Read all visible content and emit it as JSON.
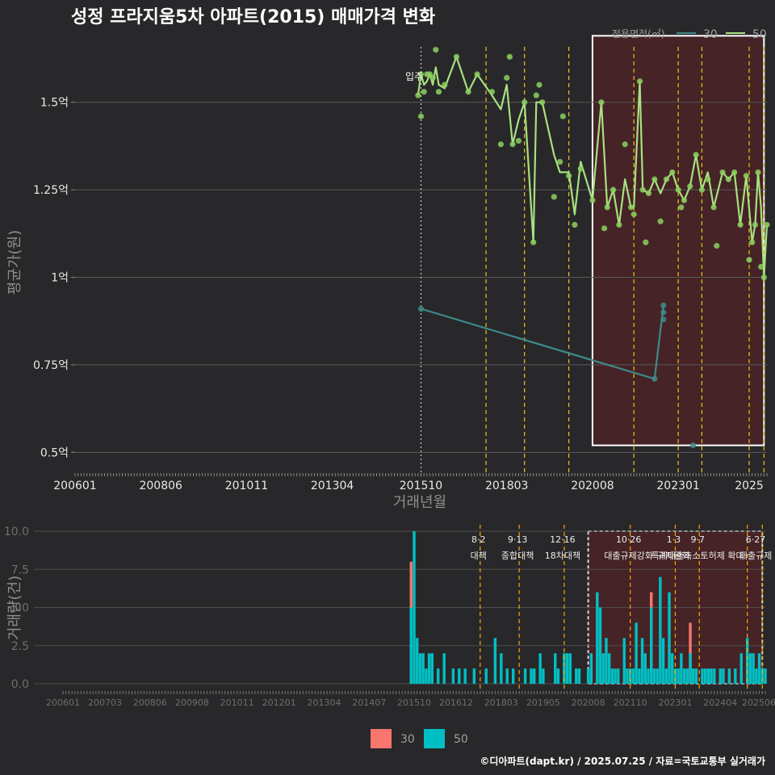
{
  "title": "성정 프라지움5차 아파트(2015) 매매가격 변화",
  "caption": "©디아파트(dapt.kr) / 2025.07.25 / 자료=국토교통부 실거래가",
  "colors": {
    "background": "#28282a",
    "s30_line": "#3e8a8a",
    "s50_line": "#a8e080",
    "s50_point": "#8cd060",
    "bar30": "#f8766d",
    "bar50": "#00bfc4",
    "policy": "#f0c020",
    "policy_bottom": "#ffa500",
    "highlight_fill": "#4a2226",
    "highlight_stroke": "#ffffff"
  },
  "legend": {
    "title": "전용면적(㎡)",
    "items": [
      {
        "label": "30",
        "color": "#3e8a8a"
      },
      {
        "label": "50",
        "color": "#a8e080"
      }
    ]
  },
  "bottom_legend": {
    "items": [
      {
        "label": "30",
        "color": "#f8766d"
      },
      {
        "label": "50",
        "color": "#00bfc4"
      }
    ]
  },
  "chart_data": [
    {
      "type": "line",
      "name": "price",
      "xlabel": "거래년월",
      "ylabel": "평균가(원)",
      "y_unit": "억",
      "xlim": [
        "2006-01",
        "2025-07"
      ],
      "ylim": [
        0.45,
        1.7
      ],
      "x_ticks": [
        "200601",
        "200806",
        "201011",
        "201304",
        "201510",
        "201803",
        "202008",
        "202301",
        "2025"
      ],
      "y_ticks": [
        {
          "v": 0.5,
          "label": "0.5억"
        },
        {
          "v": 0.75,
          "label": "0.75억"
        },
        {
          "v": 1.0,
          "label": "1억"
        },
        {
          "v": 1.25,
          "label": "1.25억"
        },
        {
          "v": 1.5,
          "label": "1.5억"
        }
      ],
      "annotation": {
        "label": "입주",
        "x": "2015-10"
      },
      "policy_lines": [
        "2017-08",
        "2018-09",
        "2019-12",
        "2021-10",
        "2023-01",
        "2023-09",
        "2025-01",
        "2025-06"
      ],
      "highlight": {
        "from": "2020-08",
        "to": "2025-06",
        "ymin": 0.52,
        "ymax": 1.69
      },
      "series": [
        {
          "name": "30",
          "line": [
            [
              "2015-10",
              0.91
            ],
            [
              "2022-05",
              0.71
            ],
            [
              "2022-08",
              0.92
            ]
          ],
          "points": [
            [
              "2015-10",
              0.91
            ],
            [
              "2022-05",
              0.71
            ],
            [
              "2022-08",
              0.88
            ],
            [
              "2022-08",
              0.9
            ],
            [
              "2022-08",
              0.92
            ],
            [
              "2023-06",
              0.52
            ]
          ]
        },
        {
          "name": "50",
          "line": [
            [
              "2015-09",
              1.52
            ],
            [
              "2015-10",
              1.58
            ],
            [
              "2015-11",
              1.55
            ],
            [
              "2015-12",
              1.56
            ],
            [
              "2016-01",
              1.58
            ],
            [
              "2016-02",
              1.55
            ],
            [
              "2016-03",
              1.6
            ],
            [
              "2016-04",
              1.55
            ],
            [
              "2016-06",
              1.54
            ],
            [
              "2016-10",
              1.63
            ],
            [
              "2017-02",
              1.53
            ],
            [
              "2017-05",
              1.58
            ],
            [
              "2017-10",
              1.52
            ],
            [
              "2018-01",
              1.48
            ],
            [
              "2018-03",
              1.55
            ],
            [
              "2018-05",
              1.38
            ],
            [
              "2018-07",
              1.45
            ],
            [
              "2018-09",
              1.5
            ],
            [
              "2018-12",
              1.1
            ],
            [
              "2019-01",
              1.5
            ],
            [
              "2019-03",
              1.5
            ],
            [
              "2019-07",
              1.35
            ],
            [
              "2019-09",
              1.3
            ],
            [
              "2019-12",
              1.3
            ],
            [
              "2020-02",
              1.18
            ],
            [
              "2020-04",
              1.33
            ],
            [
              "2020-08",
              1.22
            ],
            [
              "2020-11",
              1.5
            ],
            [
              "2021-01",
              1.2
            ],
            [
              "2021-03",
              1.25
            ],
            [
              "2021-05",
              1.15
            ],
            [
              "2021-07",
              1.28
            ],
            [
              "2021-09",
              1.2
            ],
            [
              "2021-10",
              1.2
            ],
            [
              "2021-12",
              1.56
            ],
            [
              "2022-01",
              1.25
            ],
            [
              "2022-03",
              1.24
            ],
            [
              "2022-05",
              1.28
            ],
            [
              "2022-07",
              1.24
            ],
            [
              "2022-09",
              1.28
            ],
            [
              "2022-11",
              1.3
            ],
            [
              "2023-01",
              1.25
            ],
            [
              "2023-03",
              1.22
            ],
            [
              "2023-05",
              1.26
            ],
            [
              "2023-07",
              1.35
            ],
            [
              "2023-09",
              1.25
            ],
            [
              "2023-11",
              1.3
            ],
            [
              "2024-01",
              1.2
            ],
            [
              "2024-04",
              1.3
            ],
            [
              "2024-06",
              1.28
            ],
            [
              "2024-08",
              1.3
            ],
            [
              "2024-10",
              1.15
            ],
            [
              "2024-12",
              1.29
            ],
            [
              "2025-02",
              1.1
            ],
            [
              "2025-03",
              1.15
            ],
            [
              "2025-04",
              1.3
            ],
            [
              "2025-05",
              1.2
            ],
            [
              "2025-06",
              1.0
            ],
            [
              "2025-07",
              1.15
            ]
          ],
          "points": [
            [
              "2015-09",
              1.52
            ],
            [
              "2015-10",
              1.46
            ],
            [
              "2015-10",
              1.58
            ],
            [
              "2015-11",
              1.53
            ],
            [
              "2015-12",
              1.58
            ],
            [
              "2016-01",
              1.58
            ],
            [
              "2016-02",
              1.57
            ],
            [
              "2016-03",
              1.65
            ],
            [
              "2016-04",
              1.53
            ],
            [
              "2016-06",
              1.55
            ],
            [
              "2016-10",
              1.63
            ],
            [
              "2017-02",
              1.53
            ],
            [
              "2017-05",
              1.58
            ],
            [
              "2017-10",
              1.53
            ],
            [
              "2018-01",
              1.38
            ],
            [
              "2018-03",
              1.57
            ],
            [
              "2018-04",
              1.63
            ],
            [
              "2018-05",
              1.38
            ],
            [
              "2018-07",
              1.39
            ],
            [
              "2018-09",
              1.5
            ],
            [
              "2018-12",
              1.1
            ],
            [
              "2019-01",
              1.52
            ],
            [
              "2019-02",
              1.55
            ],
            [
              "2019-03",
              1.5
            ],
            [
              "2019-07",
              1.23
            ],
            [
              "2019-09",
              1.33
            ],
            [
              "2019-10",
              1.46
            ],
            [
              "2019-12",
              1.29
            ],
            [
              "2020-02",
              1.15
            ],
            [
              "2020-04",
              1.31
            ],
            [
              "2020-08",
              1.22
            ],
            [
              "2020-11",
              1.5
            ],
            [
              "2020-12",
              1.14
            ],
            [
              "2021-01",
              1.2
            ],
            [
              "2021-03",
              1.25
            ],
            [
              "2021-05",
              1.15
            ],
            [
              "2021-07",
              1.38
            ],
            [
              "2021-09",
              1.2
            ],
            [
              "2021-10",
              1.18
            ],
            [
              "2021-12",
              1.56
            ],
            [
              "2022-01",
              1.25
            ],
            [
              "2022-02",
              1.1
            ],
            [
              "2022-03",
              1.24
            ],
            [
              "2022-05",
              1.28
            ],
            [
              "2022-07",
              1.16
            ],
            [
              "2022-09",
              1.28
            ],
            [
              "2022-11",
              1.3
            ],
            [
              "2023-01",
              1.25
            ],
            [
              "2023-02",
              1.2
            ],
            [
              "2023-03",
              1.22
            ],
            [
              "2023-05",
              1.26
            ],
            [
              "2023-07",
              1.35
            ],
            [
              "2023-09",
              1.25
            ],
            [
              "2023-11",
              1.28
            ],
            [
              "2024-01",
              1.2
            ],
            [
              "2024-02",
              1.09
            ],
            [
              "2024-04",
              1.3
            ],
            [
              "2024-06",
              1.28
            ],
            [
              "2024-08",
              1.3
            ],
            [
              "2024-10",
              1.15
            ],
            [
              "2024-12",
              1.29
            ],
            [
              "2025-01",
              1.05
            ],
            [
              "2025-02",
              1.1
            ],
            [
              "2025-03",
              1.15
            ],
            [
              "2025-04",
              1.3
            ],
            [
              "2025-05",
              1.03
            ],
            [
              "2025-06",
              1.0
            ],
            [
              "2025-07",
              1.15
            ]
          ]
        }
      ]
    },
    {
      "type": "bar",
      "name": "volume",
      "ylabel": "거래량(건)",
      "xlim": [
        "2006-01",
        "2025-07"
      ],
      "ylim": [
        0,
        10
      ],
      "x_ticks": [
        "200601",
        "200703",
        "200806",
        "200908",
        "201011",
        "201201",
        "201304",
        "201407",
        "201510",
        "201612",
        "201803",
        "201905",
        "202008",
        "202110",
        "202301",
        "202404",
        "202506"
      ],
      "y_ticks": [
        {
          "v": 0,
          "label": "0.0"
        },
        {
          "v": 2.5,
          "label": "2.5"
        },
        {
          "v": 5,
          "label": "5.0"
        },
        {
          "v": 7.5,
          "label": "7.5"
        },
        {
          "v": 10,
          "label": "10.0"
        }
      ],
      "policy_lines": [
        {
          "x": "2017-08",
          "label": "8·2 대책"
        },
        {
          "x": "2018-09",
          "label": "9·13 종합대책"
        },
        {
          "x": "2019-12",
          "label": "12·16 18차대책"
        },
        {
          "x": "2021-10",
          "label": "10·26 대출규제강화"
        },
        {
          "x": "2023-01",
          "label": "1·3 규제완화"
        },
        {
          "x": "2023-09",
          "label": "9·7 특례대출축소토허제 확대"
        },
        {
          "x": "2025-01",
          "label": ""
        },
        {
          "x": "2025-06",
          "label": "6·27 대출규제"
        }
      ],
      "highlight": {
        "from": "2020-08",
        "to": "2025-06"
      },
      "series": [
        {
          "name": "30",
          "bars": [
            [
              "2015-09",
              8
            ],
            [
              "2022-05",
              6
            ],
            [
              "2023-06",
              4
            ]
          ]
        },
        {
          "name": "50",
          "bars": [
            [
              "2015-09",
              5
            ],
            [
              "2015-10",
              10
            ],
            [
              "2015-11",
              3
            ],
            [
              "2015-12",
              2
            ],
            [
              "2016-01",
              2
            ],
            [
              "2016-02",
              1
            ],
            [
              "2016-03",
              2
            ],
            [
              "2016-04",
              2
            ],
            [
              "2016-06",
              1
            ],
            [
              "2016-08",
              2
            ],
            [
              "2016-11",
              1
            ],
            [
              "2017-01",
              1
            ],
            [
              "2017-03",
              1
            ],
            [
              "2017-06",
              1
            ],
            [
              "2017-10",
              1
            ],
            [
              "2018-01",
              3
            ],
            [
              "2018-03",
              2
            ],
            [
              "2018-05",
              1
            ],
            [
              "2018-07",
              1
            ],
            [
              "2018-11",
              1
            ],
            [
              "2019-01",
              1
            ],
            [
              "2019-02",
              1
            ],
            [
              "2019-04",
              2
            ],
            [
              "2019-05",
              1
            ],
            [
              "2019-09",
              2
            ],
            [
              "2019-10",
              1
            ],
            [
              "2019-12",
              2
            ],
            [
              "2020-01",
              2
            ],
            [
              "2020-02",
              2
            ],
            [
              "2020-04",
              1
            ],
            [
              "2020-05",
              1
            ],
            [
              "2020-08",
              1
            ],
            [
              "2020-09",
              2
            ],
            [
              "2020-11",
              6
            ],
            [
              "2020-12",
              5
            ],
            [
              "2021-01",
              2
            ],
            [
              "2021-02",
              3
            ],
            [
              "2021-03",
              2
            ],
            [
              "2021-04",
              1
            ],
            [
              "2021-05",
              1
            ],
            [
              "2021-06",
              1
            ],
            [
              "2021-08",
              3
            ],
            [
              "2021-09",
              1
            ],
            [
              "2021-10",
              1
            ],
            [
              "2021-11",
              1
            ],
            [
              "2021-12",
              4
            ],
            [
              "2022-01",
              1
            ],
            [
              "2022-02",
              3
            ],
            [
              "2022-03",
              2
            ],
            [
              "2022-04",
              1
            ],
            [
              "2022-05",
              5
            ],
            [
              "2022-06",
              1
            ],
            [
              "2022-07",
              1
            ],
            [
              "2022-08",
              7
            ],
            [
              "2022-09",
              3
            ],
            [
              "2022-10",
              1
            ],
            [
              "2022-11",
              6
            ],
            [
              "2022-12",
              2
            ],
            [
              "2023-01",
              1
            ],
            [
              "2023-02",
              1
            ],
            [
              "2023-03",
              2
            ],
            [
              "2023-04",
              1
            ],
            [
              "2023-05",
              1
            ],
            [
              "2023-06",
              2
            ],
            [
              "2023-07",
              1
            ],
            [
              "2023-08",
              1
            ],
            [
              "2023-10",
              1
            ],
            [
              "2023-11",
              1
            ],
            [
              "2023-12",
              1
            ],
            [
              "2024-01",
              1
            ],
            [
              "2024-02",
              1
            ],
            [
              "2024-04",
              1
            ],
            [
              "2024-05",
              1
            ],
            [
              "2024-07",
              1
            ],
            [
              "2024-09",
              1
            ],
            [
              "2024-11",
              2
            ],
            [
              "2025-01",
              3
            ],
            [
              "2025-02",
              2
            ],
            [
              "2025-03",
              2
            ],
            [
              "2025-04",
              1
            ],
            [
              "2025-05",
              2
            ],
            [
              "2025-06",
              1
            ],
            [
              "2025-07",
              1
            ]
          ]
        }
      ]
    }
  ]
}
